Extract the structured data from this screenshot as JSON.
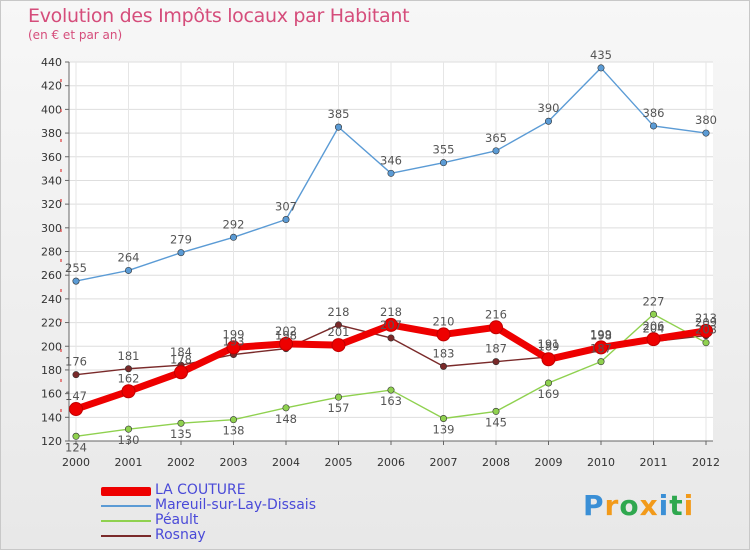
{
  "chart_data": {
    "type": "line",
    "title": "Evolution des Impôts locaux par Habitant",
    "subtitle": "(en € et par an)",
    "xlabel": "",
    "ylabel": "",
    "ylim": [
      120,
      440
    ],
    "y_ticks": [
      120,
      140,
      160,
      180,
      200,
      220,
      240,
      260,
      280,
      300,
      320,
      340,
      360,
      380,
      400,
      420,
      440
    ],
    "categories": [
      "2000",
      "2001",
      "2002",
      "2003",
      "2004",
      "2005",
      "2006",
      "2007",
      "2008",
      "2009",
      "2010",
      "2011",
      "2012"
    ],
    "grid": true,
    "legend_position": "bottom-left",
    "series": [
      {
        "name": "Mareuil-sur-Lay-Dissais",
        "color": "#5b9bd5",
        "values": [
          255,
          264,
          279,
          292,
          307,
          385,
          346,
          355,
          365,
          390,
          435,
          386,
          380
        ]
      },
      {
        "name": "Rosnay",
        "color": "#7a2a2a",
        "values": [
          176,
          181,
          184,
          193,
          198,
          218,
          207,
          183,
          187,
          191,
          198,
          204,
          209
        ]
      },
      {
        "name": "Péault",
        "color": "#8fd14f",
        "values": [
          124,
          130,
          135,
          138,
          148,
          157,
          163,
          139,
          145,
          169,
          187,
          227,
          203
        ]
      },
      {
        "name": "LA COUTURE",
        "color": "#ee0000",
        "values": [
          147,
          162,
          178,
          199,
          202,
          201,
          218,
          210,
          216,
          189,
          199,
          206,
          213
        ]
      }
    ],
    "legend": [
      {
        "name": "LA COUTURE",
        "color": "#ee0000",
        "thick": true
      },
      {
        "name": "Mareuil-sur-Lay-Dissais",
        "color": "#5b9bd5",
        "thick": false
      },
      {
        "name": "Péault",
        "color": "#8fd14f",
        "thick": false
      },
      {
        "name": "Rosnay",
        "color": "#7a2a2a",
        "thick": false
      }
    ]
  },
  "logo": {
    "letters": [
      "P",
      "r",
      "o",
      "x",
      "i",
      "t",
      "i"
    ],
    "colors": [
      "#3a8fd6",
      "#f29a1a",
      "#2fa84f",
      "#f29a1a",
      "#3a8fd6",
      "#2fa84f",
      "#f29a1a"
    ]
  }
}
